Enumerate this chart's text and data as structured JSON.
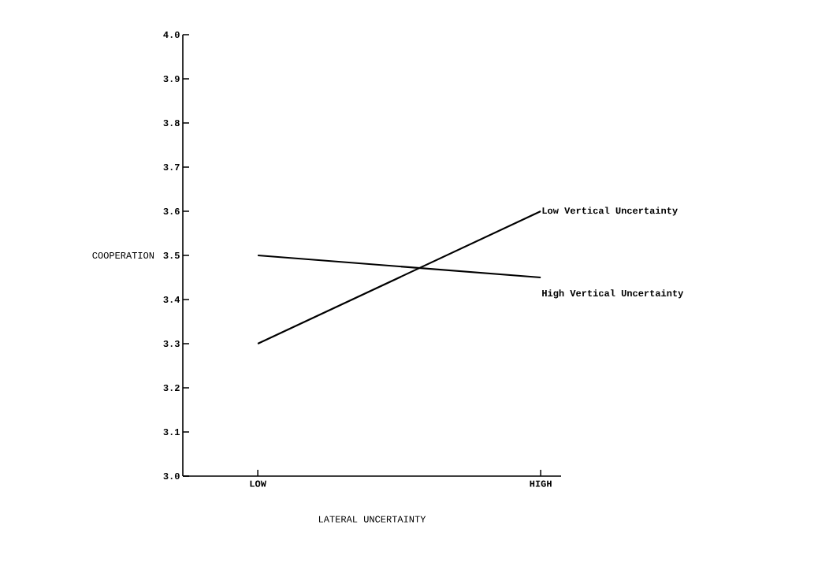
{
  "chart_data": {
    "type": "line",
    "xlabel": "LATERAL UNCERTAINTY",
    "ylabel": "COOPERATION",
    "categories": [
      "LOW",
      "HIGH"
    ],
    "series": [
      {
        "name": "Low Vertical Uncertainty",
        "color": "#000000",
        "values": [
          3.3,
          3.6
        ]
      },
      {
        "name": "High Vertical Uncertainty",
        "color": "#000000",
        "values": [
          3.5,
          3.45
        ]
      }
    ],
    "ylim": [
      3.0,
      4.0
    ],
    "yticks": [
      {
        "value": 3.0,
        "label": "3.0"
      },
      3.1,
      3.2,
      3.3,
      3.4,
      3.5,
      3.6,
      3.7,
      3.8,
      3.9,
      {
        "value": 4.0,
        "label": "4.0"
      }
    ],
    "grid": false,
    "legend": false,
    "marker": "none",
    "line_style": "solid"
  }
}
